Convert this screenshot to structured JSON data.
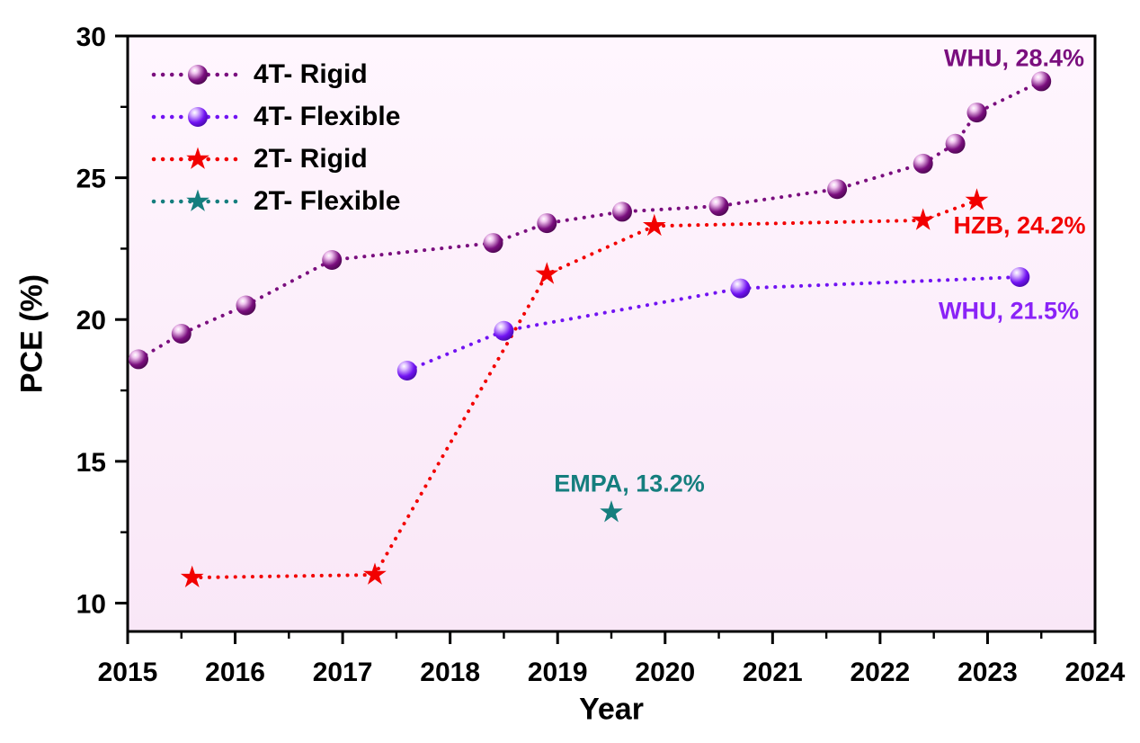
{
  "chart_data": {
    "type": "scatter",
    "title": "",
    "xlabel": "Year",
    "ylabel": "PCE (%)",
    "xlim": [
      2015,
      2024
    ],
    "ylim": [
      9,
      30
    ],
    "x_major_ticks": [
      2015,
      2016,
      2017,
      2018,
      2019,
      2020,
      2021,
      2022,
      2023,
      2024
    ],
    "x_minor_ticks": [
      2015.5,
      2016.5,
      2017.5,
      2018.5,
      2019.5,
      2020.5,
      2021.5,
      2022.5,
      2023.5
    ],
    "y_major_ticks": [
      10,
      15,
      20,
      25,
      30
    ],
    "y_minor_ticks": [
      12.5,
      17.5,
      22.5,
      27.5
    ],
    "grid": false,
    "legend_position": "top-left",
    "background": {
      "outer": "#ffffff",
      "plot_top": "#fff6fe",
      "plot_bottom": "#f9e7f7",
      "frame": "#000000"
    },
    "series": [
      {
        "name": "4T- Rigid",
        "marker": "sphere",
        "color": "#7a0e7e",
        "highlight": "#efc3ee",
        "edge": "#4f0853",
        "line_style": "dotted",
        "x": [
          2015.1,
          2015.5,
          2016.1,
          2016.9,
          2018.4,
          2018.9,
          2019.6,
          2020.5,
          2021.6,
          2022.4,
          2022.7,
          2022.9,
          2023.5
        ],
        "y": [
          18.6,
          19.5,
          20.5,
          22.1,
          22.7,
          23.4,
          23.8,
          24.0,
          24.6,
          25.5,
          26.2,
          27.3,
          28.4
        ]
      },
      {
        "name": "4T- Flexible",
        "marker": "sphere",
        "color": "#7113f2",
        "highlight": "#dcbcff",
        "edge": "#4a0bb0",
        "line_style": "dotted",
        "x": [
          2017.6,
          2018.5,
          2020.7,
          2023.3
        ],
        "y": [
          18.2,
          19.6,
          21.1,
          21.5
        ]
      },
      {
        "name": "2T- Rigid",
        "marker": "star",
        "color": "#f20000",
        "line_style": "dotted",
        "x": [
          2015.6,
          2017.3,
          2018.9,
          2019.9,
          2022.4,
          2022.9
        ],
        "y": [
          10.9,
          11.0,
          21.6,
          23.3,
          23.5,
          24.2
        ]
      },
      {
        "name": "2T- Flexible",
        "marker": "star",
        "color": "#157e7e",
        "line_style": "dotted",
        "x": [
          2019.5
        ],
        "y": [
          13.2
        ]
      }
    ],
    "annotations": [
      {
        "text": "WHU, 28.4%",
        "x": 2023.25,
        "y": 29.2,
        "color": "#7a0e7e"
      },
      {
        "text": "HZB, 24.2%",
        "x": 2023.3,
        "y": 23.3,
        "color": "#f20000"
      },
      {
        "text": "WHU, 21.5%",
        "x": 2023.2,
        "y": 20.3,
        "color": "#8a22f7"
      },
      {
        "text": "EMPA, 13.2%",
        "x": 2019.67,
        "y": 14.2,
        "color": "#157e7e"
      }
    ]
  }
}
